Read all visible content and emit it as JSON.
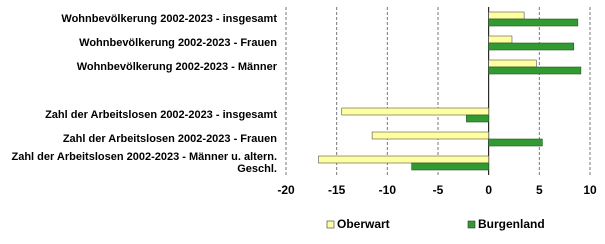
{
  "chart_data": {
    "type": "hbar",
    "categories": [
      "Wohnbevölkerung 2002-2023 - insgesamt",
      "Wohnbevölkerung 2002-2023 - Frauen",
      "Wohnbevölkerung 2002-2023 - Männer",
      null,
      "Zahl der Arbeitslosen 2002-2023 - insgesamt",
      "Zahl der Arbeitslosen 2002-2023 - Frauen",
      "Zahl der Arbeitslosen 2002-2023 - Männer u. altern. Geschl."
    ],
    "series": [
      {
        "name": "Oberwart",
        "color": "#ffffa0",
        "values": [
          3.5,
          2.3,
          4.7,
          null,
          -14.5,
          -11.5,
          -16.8
        ]
      },
      {
        "name": "Burgenland",
        "color": "#339933",
        "values": [
          8.8,
          8.4,
          9.1,
          null,
          -2.2,
          5.3,
          -7.6
        ]
      }
    ],
    "xlim": [
      -20,
      10
    ],
    "xticks": [
      -20,
      -15,
      -10,
      -5,
      0,
      5,
      10
    ],
    "grid": true
  }
}
